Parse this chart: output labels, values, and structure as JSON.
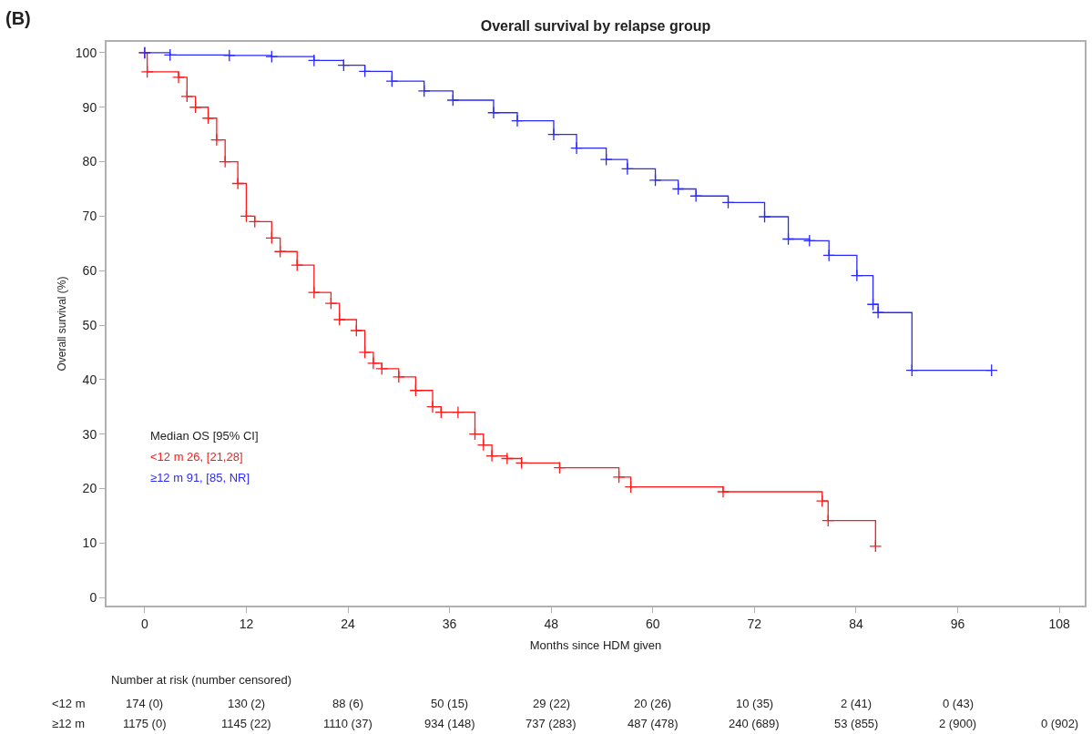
{
  "chart_data": {
    "type": "step",
    "title": "Overall survival by relapse group",
    "xlabel": "Months since HDM given",
    "ylabel": "Overall survival (%)",
    "series": [
      {
        "color": "#ff1a1a",
        "x": [
          0,
          0.3,
          4,
          5,
          6,
          7.5,
          8.5,
          9.5,
          11,
          12,
          13,
          15,
          16,
          18,
          20,
          22,
          23,
          25,
          26,
          27,
          28,
          30,
          32,
          34,
          35,
          37,
          39,
          40,
          41,
          42.8,
          44.5,
          49,
          56,
          57.4,
          68.3,
          80,
          80.7,
          86.3
        ],
        "values": [
          100,
          96.5,
          95.5,
          92,
          90,
          88,
          84,
          80,
          76,
          70,
          69,
          66,
          63.5,
          61,
          56,
          54,
          51,
          49,
          45,
          43,
          42,
          40.5,
          38,
          35,
          34,
          34,
          30,
          28,
          26,
          25.5,
          24.7,
          23.8,
          22.1,
          20.3,
          19.4,
          17.7,
          14.1,
          9.4
        ]
      },
      {
        "color": "#2a2aff",
        "x": [
          0,
          3,
          10,
          15,
          20,
          23.5,
          26,
          29.2,
          33,
          36.4,
          41.2,
          44,
          48.3,
          51,
          54.5,
          57,
          60.3,
          63,
          65.1,
          68.9,
          73.2,
          76,
          78.5,
          80.8,
          84.1,
          86,
          86.6,
          90.6,
          100
        ],
        "values": [
          100,
          99.6,
          99.5,
          99.3,
          98.6,
          97.7,
          96.6,
          94.8,
          93,
          91.3,
          89,
          87.5,
          85,
          82.5,
          80.4,
          78.7,
          76.6,
          75,
          73.7,
          72.5,
          69.9,
          65.8,
          65.5,
          62.8,
          59.1,
          53.8,
          52.3,
          41.7,
          41.7
        ]
      }
    ],
    "xlim": [
      -4.5,
      111
    ],
    "xticks": [
      0,
      12,
      24,
      36,
      48,
      60,
      72,
      84,
      96,
      108
    ],
    "ylim": [
      -1.5,
      102
    ],
    "yticks": [
      0,
      10,
      20,
      30,
      40,
      50,
      60,
      70,
      80,
      90,
      100
    ],
    "marker": "cross",
    "line_style": "solid",
    "annotations": [
      "(B)",
      "Median OS [95% CI]",
      "<12 m 26, [21,28]",
      "≥12 m 91, [85, NR]",
      "Number at risk (number censored)",
      "<12 m",
      "174 (0)",
      "130 (2)",
      "88 (6)",
      "50 (15)",
      "29 (22)",
      "20 (26)",
      "10 (35)",
      "2 (41)",
      "0 (43)",
      "≥12 m",
      "1175 (0)",
      "1145 (22)",
      "1110 (37)",
      "934 (148)",
      "737 (283)",
      "487 (478)",
      "240 (689)",
      "53 (855)",
      "2 (900)",
      "0 (902)"
    ]
  }
}
